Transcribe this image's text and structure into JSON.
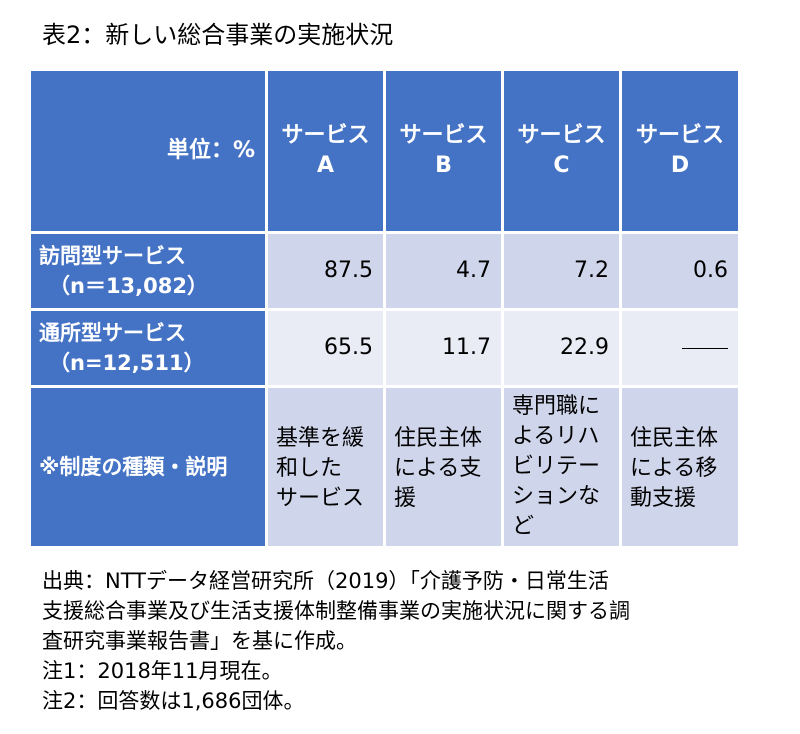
{
  "title": "表2：新しい総合事業の実施状況",
  "table": {
    "unit_label": "単位：%",
    "services": [
      {
        "line1": "サービス",
        "line2": "A"
      },
      {
        "line1": "サービス",
        "line2": "B"
      },
      {
        "line1": "サービス",
        "line2": "C"
      },
      {
        "line1": "サービス",
        "line2": "D"
      }
    ],
    "rows": [
      {
        "label_line1": "訪問型サービス",
        "label_line2": "（n＝13,082）",
        "values": [
          "87.5",
          "4.7",
          "7.2",
          "0.6"
        ]
      },
      {
        "label_line1": "通所型サービス",
        "label_line2": "（n=12,511）",
        "values": [
          "65.5",
          "11.7",
          "22.9",
          ""
        ]
      }
    ],
    "description_row": {
      "label": "※制度の種類・説明",
      "cells": [
        [
          "基準を緩",
          "和した",
          "サービス"
        ],
        [
          "住民主体",
          "による支",
          "援"
        ],
        [
          "専門職に",
          "よるリハ",
          "ビリテー",
          "ションな",
          "ど"
        ],
        [
          "住民主体",
          "による移",
          "動支援"
        ]
      ]
    }
  },
  "notes": [
    "出典：NTTデータ経営研究所（2019）「介護予防・日常生活",
    "支援総合事業及び生活支援体制整備事業の実施状況に関する調",
    "査研究事業報告書」を基に作成。",
    "注1：2018年11月現在。",
    "注2：回答数は1,686団体。"
  ]
}
